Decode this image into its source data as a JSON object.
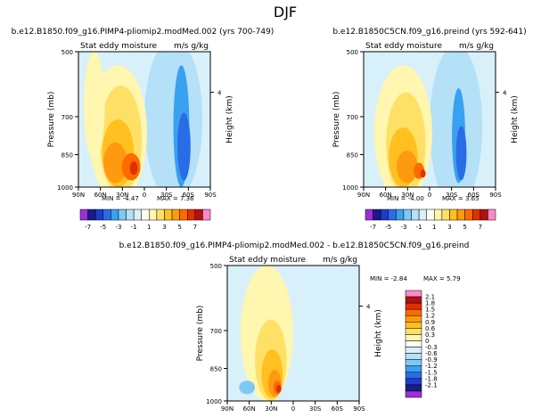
{
  "figure": {
    "title": "DJF"
  },
  "colors": {
    "levels": [
      "-7",
      "-5",
      "-3",
      "-1",
      "1",
      "3",
      "5",
      "7"
    ],
    "palette": [
      "#9b30d9",
      "#1a1a8c",
      "#1e3ccc",
      "#2a6ce6",
      "#3aa0f0",
      "#7ec8f4",
      "#b4e0f8",
      "#d8f0fa",
      "#fffff0",
      "#fff6b0",
      "#ffe066",
      "#ffc020",
      "#ff9a10",
      "#ff6a00",
      "#e03000",
      "#b41010",
      "#ff88c8"
    ],
    "diff_palette": [
      "#9b30d9",
      "#1a1a8c",
      "#1e3ccc",
      "#2a6ce6",
      "#3aa0f0",
      "#7ec8f4",
      "#b4e0f8",
      "#d8f0fa",
      "#fffff0",
      "#fff6b0",
      "#ffe066",
      "#ffc020",
      "#ff9a10",
      "#ff6a00",
      "#e03000",
      "#b41010",
      "#ff88c8"
    ]
  },
  "chart_data": [
    {
      "type": "heatmap",
      "panel": "top-left",
      "title": "b.e12.B1850.f09_g16.PIMP4-pliomip2.modMed.002 (yrs 700-749)",
      "variable": "Stat eddy moisture",
      "units": "m/s g/kg",
      "xlabel": "",
      "ylabel": "Pressure (mb)",
      "y2label": "Height (km)",
      "xticks": [
        "90N",
        "60N",
        "30N",
        "0",
        "30S",
        "60S",
        "90S"
      ],
      "yticks": [
        "500",
        "700",
        "850",
        "1000"
      ],
      "y2ticks": [
        "4"
      ],
      "min": -4.47,
      "max": 7.36,
      "min_label": "MIN = -4.47",
      "max_label": "MAX = 7.36"
    },
    {
      "type": "heatmap",
      "panel": "top-right",
      "title": "b.e12.B1850C5CN.f09_g16.preind (yrs 592-641)",
      "variable": "Stat eddy moisture",
      "units": "m/s g/kg",
      "xlabel": "",
      "ylabel": "Pressure (mb)",
      "y2label": "Height (km)",
      "xticks": [
        "90N",
        "60N",
        "30N",
        "0",
        "30S",
        "60S",
        "90S"
      ],
      "yticks": [
        "500",
        "700",
        "850",
        "1000"
      ],
      "y2ticks": [
        "4"
      ],
      "min": -4.0,
      "max": 3.65,
      "min_label": "MIN = -4.00",
      "max_label": "MAX = 3.65"
    },
    {
      "type": "heatmap",
      "panel": "bottom",
      "title": "b.e12.B1850.f09_g16.PIMP4-pliomip2.modMed.002 - b.e12.B1850C5CN.f09_g16.preind",
      "variable": "Stat eddy moisture",
      "units": "m/s g/kg",
      "xlabel": "",
      "ylabel": "Pressure (mb)",
      "y2label": "Height (km)",
      "xticks": [
        "90N",
        "60N",
        "30N",
        "0",
        "30S",
        "60S",
        "90S"
      ],
      "yticks": [
        "500",
        "700",
        "850",
        "1000"
      ],
      "y2ticks": [
        "4"
      ],
      "min": -2.84,
      "max": 5.79,
      "min_label": "MIN = -2.84",
      "max_label": "MAX = 5.79",
      "colorbar_levels": [
        "2.1",
        "1.8",
        "1.5",
        "1.2",
        "0.9",
        "0.6",
        "0.3",
        "0",
        "-0.3",
        "-0.6",
        "-0.9",
        "-1.2",
        "-1.5",
        "-1.8",
        "-2.1"
      ]
    }
  ]
}
